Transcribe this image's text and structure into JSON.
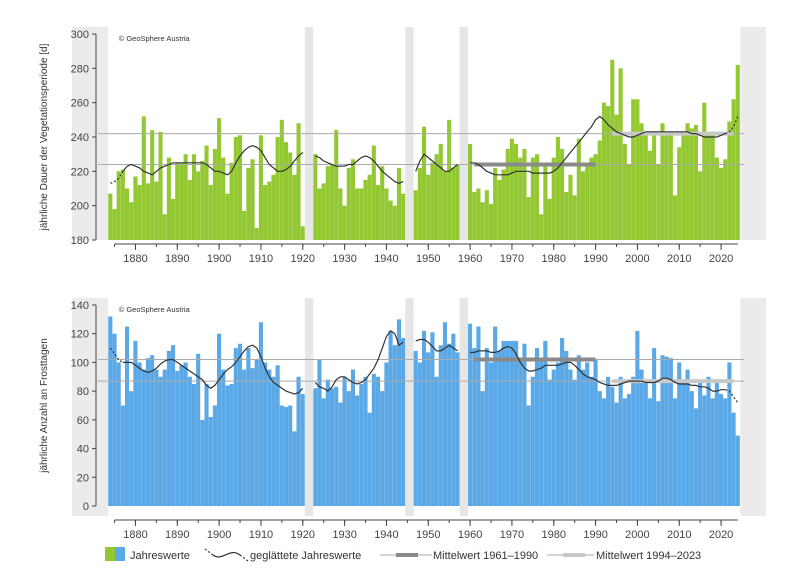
{
  "chart_data": [
    {
      "type": "bar",
      "copyright": "© GeoSphere Austria",
      "ylabel": "jährliche Dauer der Vegetationsperiode [d]",
      "xlabel": "",
      "title": "",
      "ylim": [
        180,
        300
      ],
      "yticks": [
        180,
        200,
        220,
        240,
        260,
        280,
        300
      ],
      "xticks": [
        1880,
        1890,
        1900,
        1910,
        1920,
        1930,
        1940,
        1950,
        1960,
        1970,
        1980,
        1990,
        2000,
        2010,
        2020
      ],
      "xlim": [
        1872,
        2025
      ],
      "gaps": [
        [
          1921,
          1922
        ],
        [
          1945,
          1946
        ],
        [
          1958,
          1959
        ]
      ],
      "bar_color": "#93c832",
      "years": [
        1874,
        1875,
        1876,
        1877,
        1878,
        1879,
        1880,
        1881,
        1882,
        1883,
        1884,
        1885,
        1886,
        1887,
        1888,
        1889,
        1890,
        1891,
        1892,
        1893,
        1894,
        1895,
        1896,
        1897,
        1898,
        1899,
        1900,
        1901,
        1902,
        1903,
        1904,
        1905,
        1906,
        1907,
        1908,
        1909,
        1910,
        1911,
        1912,
        1913,
        1914,
        1915,
        1916,
        1917,
        1918,
        1919,
        1920,
        1923,
        1924,
        1925,
        1926,
        1927,
        1928,
        1929,
        1930,
        1931,
        1932,
        1933,
        1934,
        1935,
        1936,
        1937,
        1938,
        1939,
        1940,
        1941,
        1942,
        1943,
        1944,
        1947,
        1948,
        1949,
        1950,
        1951,
        1952,
        1953,
        1954,
        1955,
        1956,
        1957,
        1960,
        1961,
        1962,
        1963,
        1964,
        1965,
        1966,
        1967,
        1968,
        1969,
        1970,
        1971,
        1972,
        1973,
        1974,
        1975,
        1976,
        1977,
        1978,
        1979,
        1980,
        1981,
        1982,
        1983,
        1984,
        1985,
        1986,
        1987,
        1988,
        1989,
        1990,
        1991,
        1992,
        1993,
        1994,
        1995,
        1996,
        1997,
        1998,
        1999,
        2000,
        2001,
        2002,
        2003,
        2004,
        2005,
        2006,
        2007,
        2008,
        2009,
        2010,
        2011,
        2012,
        2013,
        2014,
        2015,
        2016,
        2017,
        2018,
        2019,
        2020,
        2021,
        2022,
        2023,
        2024
      ],
      "values": [
        207,
        198,
        220,
        221,
        210,
        202,
        217,
        212,
        252,
        213,
        244,
        214,
        243,
        195,
        228,
        204,
        225,
        225,
        230,
        215,
        230,
        220,
        226,
        235,
        212,
        233,
        251,
        228,
        207,
        225,
        240,
        241,
        197,
        222,
        227,
        187,
        241,
        212,
        214,
        218,
        240,
        250,
        237,
        231,
        218,
        248,
        188,
        230,
        210,
        213,
        223,
        224,
        244,
        210,
        200,
        222,
        227,
        210,
        210,
        215,
        218,
        235,
        212,
        223,
        210,
        203,
        200,
        222,
        207,
        209,
        222,
        246,
        218,
        225,
        230,
        236,
        220,
        250,
        222,
        224,
        236,
        208,
        210,
        202,
        209,
        201,
        222,
        215,
        221,
        233,
        239,
        236,
        228,
        233,
        205,
        228,
        230,
        195,
        224,
        204,
        228,
        240,
        233,
        208,
        218,
        206,
        239,
        220,
        223,
        228,
        230,
        238,
        260,
        258,
        285,
        253,
        280,
        236,
        224,
        262,
        262,
        248,
        242,
        232,
        243,
        224,
        248,
        241,
        243,
        206,
        234,
        242,
        248,
        245,
        247,
        220,
        260,
        243,
        243,
        228,
        222,
        227,
        249,
        262,
        282
      ],
      "smoothed": [
        213,
        214,
        216,
        220,
        223,
        224,
        223,
        222,
        220,
        219,
        218,
        220,
        222,
        223,
        224,
        225,
        225,
        225,
        225,
        225,
        225,
        225,
        225,
        224,
        222,
        220,
        220,
        219,
        218,
        220,
        225,
        229,
        232,
        234,
        235,
        234,
        232,
        228,
        224,
        222,
        220,
        220,
        221,
        223,
        226,
        229,
        231,
        229,
        228,
        226,
        225,
        224,
        223,
        223,
        223,
        224,
        224,
        226,
        228,
        229,
        228,
        226,
        223,
        220,
        218,
        216,
        214,
        213,
        214,
        220,
        226,
        230,
        228,
        226,
        224,
        222,
        220,
        220,
        222,
        224,
        225,
        225,
        224,
        222,
        220,
        219,
        218,
        218,
        218,
        218,
        219,
        220,
        220,
        220,
        220,
        219,
        219,
        219,
        219,
        219,
        220,
        222,
        225,
        228,
        231,
        234,
        237,
        240,
        243,
        246,
        250,
        252,
        250,
        247,
        245,
        243,
        242,
        241,
        240,
        240,
        241,
        242,
        243,
        243,
        243,
        243,
        243,
        243,
        243,
        243,
        243,
        243,
        243,
        242,
        242,
        241,
        240,
        240,
        240,
        240,
        241,
        242,
        243,
        246,
        252
      ],
      "legend": [
        {
          "label": "Jahreswerte",
          "kind": "bars"
        },
        {
          "label": "geglättete Jahreswerte",
          "kind": "curve"
        },
        {
          "label": "Mittelwert 1961–1990",
          "kind": "mean",
          "color": "#8a8a8a",
          "value": 224,
          "from": 1961,
          "to": 1990
        },
        {
          "label": "Mittelwert 1994–2023",
          "kind": "mean",
          "color": "#c8c8c8",
          "value": 242,
          "from": 1994,
          "to": 2023
        }
      ]
    },
    {
      "type": "bar",
      "copyright": "© GeoSphere Austria",
      "ylabel": "jährliche Anzahl an Frosttagen",
      "xlabel": "",
      "title": "",
      "ylim": [
        0,
        140
      ],
      "yticks": [
        0,
        20,
        40,
        60,
        80,
        100,
        120,
        140
      ],
      "xticks": [
        1880,
        1890,
        1900,
        1910,
        1920,
        1930,
        1940,
        1950,
        1960,
        1970,
        1980,
        1990,
        2000,
        2010,
        2020
      ],
      "xlim": [
        1872,
        2025
      ],
      "gaps": [
        [
          1921,
          1922
        ],
        [
          1945,
          1946
        ],
        [
          1958,
          1959
        ]
      ],
      "bar_color": "#5aa8e6",
      "years": [
        1874,
        1875,
        1876,
        1877,
        1878,
        1879,
        1880,
        1881,
        1882,
        1883,
        1884,
        1885,
        1886,
        1887,
        1888,
        1889,
        1890,
        1891,
        1892,
        1893,
        1894,
        1895,
        1896,
        1897,
        1898,
        1899,
        1900,
        1901,
        1902,
        1903,
        1904,
        1905,
        1906,
        1907,
        1908,
        1909,
        1910,
        1911,
        1912,
        1913,
        1914,
        1915,
        1916,
        1917,
        1918,
        1919,
        1920,
        1923,
        1924,
        1925,
        1926,
        1927,
        1928,
        1929,
        1930,
        1931,
        1932,
        1933,
        1934,
        1935,
        1936,
        1937,
        1938,
        1939,
        1940,
        1941,
        1942,
        1943,
        1944,
        1947,
        1948,
        1949,
        1950,
        1951,
        1952,
        1953,
        1954,
        1955,
        1956,
        1957,
        1960,
        1961,
        1962,
        1963,
        1964,
        1965,
        1966,
        1967,
        1968,
        1969,
        1970,
        1971,
        1972,
        1973,
        1974,
        1975,
        1976,
        1977,
        1978,
        1979,
        1980,
        1981,
        1982,
        1983,
        1984,
        1985,
        1986,
        1987,
        1988,
        1989,
        1990,
        1991,
        1992,
        1993,
        1994,
        1995,
        1996,
        1997,
        1998,
        1999,
        2000,
        2001,
        2002,
        2003,
        2004,
        2005,
        2006,
        2007,
        2008,
        2009,
        2010,
        2011,
        2012,
        2013,
        2014,
        2015,
        2016,
        2017,
        2018,
        2019,
        2020,
        2021,
        2022,
        2023,
        2024
      ],
      "values": [
        132,
        120,
        100,
        70,
        125,
        80,
        115,
        100,
        95,
        103,
        105,
        95,
        90,
        95,
        108,
        112,
        94,
        98,
        100,
        90,
        85,
        106,
        60,
        85,
        62,
        70,
        120,
        95,
        84,
        85,
        110,
        113,
        95,
        110,
        96,
        102,
        128,
        100,
        95,
        90,
        98,
        70,
        69,
        70,
        52,
        90,
        78,
        82,
        102,
        75,
        88,
        82,
        83,
        72,
        90,
        80,
        95,
        77,
        85,
        90,
        65,
        92,
        90,
        80,
        100,
        122,
        112,
        130,
        117,
        108,
        100,
        122,
        107,
        121,
        90,
        112,
        128,
        113,
        120,
        107,
        127,
        110,
        125,
        80,
        110,
        100,
        125,
        108,
        115,
        115,
        115,
        115,
        103,
        113,
        70,
        90,
        110,
        103,
        115,
        88,
        95,
        100,
        117,
        108,
        95,
        88,
        105,
        95,
        100,
        90,
        102,
        80,
        75,
        90,
        83,
        72,
        90,
        75,
        78,
        90,
        122,
        95,
        88,
        75,
        110,
        73,
        105,
        104,
        103,
        75,
        100,
        88,
        95,
        80,
        68,
        86,
        77,
        90,
        75,
        88,
        78,
        75,
        100,
        65,
        49
      ],
      "smoothed": [
        110,
        106,
        102,
        100,
        100,
        100,
        98,
        96,
        94,
        93,
        94,
        96,
        99,
        101,
        102,
        102,
        100,
        98,
        96,
        94,
        92,
        90,
        88,
        84,
        82,
        84,
        88,
        92,
        95,
        97,
        100,
        104,
        108,
        111,
        112,
        110,
        104,
        96,
        90,
        86,
        84,
        82,
        80,
        79,
        78,
        79,
        82,
        86,
        83,
        82,
        80,
        83,
        88,
        90,
        90,
        88,
        86,
        85,
        86,
        88,
        92,
        96,
        102,
        110,
        118,
        122,
        120,
        112,
        114,
        115,
        116,
        116,
        114,
        111,
        108,
        108,
        110,
        112,
        110,
        108,
        107,
        107,
        108,
        108,
        108,
        107,
        107,
        108,
        110,
        111,
        110,
        106,
        100,
        96,
        94,
        94,
        95,
        96,
        98,
        98,
        98,
        98,
        99,
        100,
        100,
        98,
        95,
        92,
        90,
        89,
        88,
        86,
        85,
        84,
        84,
        84,
        85,
        86,
        87,
        87,
        87,
        87,
        86,
        86,
        86,
        87,
        89,
        89,
        88,
        86,
        85,
        85,
        85,
        84,
        84,
        83,
        83,
        82,
        80,
        80,
        81,
        81,
        80,
        76,
        72
      ],
      "legend": [
        {
          "label": "Jahreswerte",
          "kind": "bars"
        },
        {
          "label": "geglättete Jahreswerte",
          "kind": "curve"
        },
        {
          "label": "Mittelwert 1961–1990",
          "kind": "mean",
          "color": "#8a8a8a",
          "value": 102,
          "from": 1961,
          "to": 1990
        },
        {
          "label": "Mittelwert 1994–2023",
          "kind": "mean",
          "color": "#c8c8c8",
          "value": 87,
          "from": 1994,
          "to": 2023
        }
      ]
    }
  ],
  "legend": {
    "items": [
      {
        "label": "Jahreswerte"
      },
      {
        "label": "geglättete Jahreswerte"
      },
      {
        "label": "Mittelwert 1961–1990"
      },
      {
        "label": "Mittelwert 1994–2023"
      }
    ]
  }
}
